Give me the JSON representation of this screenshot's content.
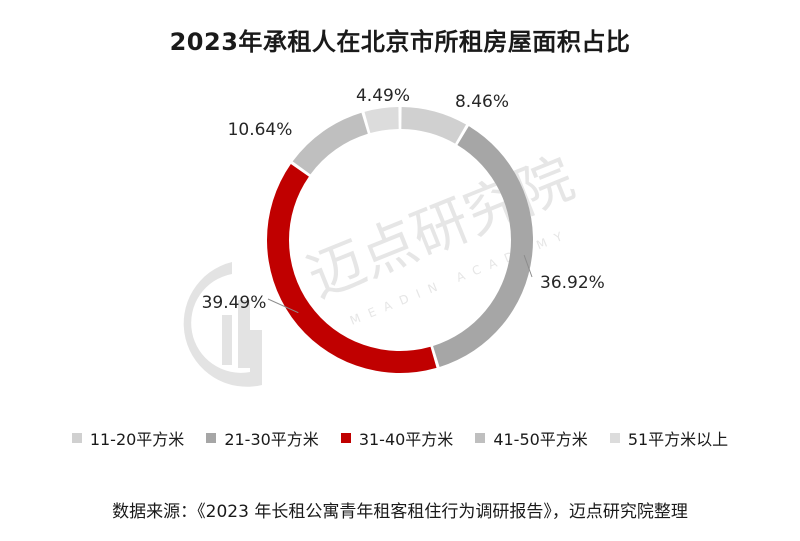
{
  "chart_data": {
    "type": "donut",
    "title": "2023年承租人在北京市所租房屋面积占比",
    "categories": [
      "11-20平方米",
      "21-30平方米",
      "31-40平方米",
      "41-50平方米",
      "51平方米以上"
    ],
    "values": [
      8.46,
      36.92,
      39.49,
      10.64,
      4.49
    ],
    "labels": [
      "8.46%",
      "36.92%",
      "39.49%",
      "10.64%",
      "4.49%"
    ],
    "colors": [
      "#d0d0d0",
      "#a6a6a6",
      "#c00000",
      "#bfbfbf",
      "#dcdcdc"
    ],
    "legend_position": "bottom"
  },
  "watermark": {
    "text": "迈点研究院",
    "subtext": "MEADIN ACADEMY"
  },
  "source": "数据来源：《2023 年长租公寓青年租客租住行为调研报告》，迈点研究院整理"
}
